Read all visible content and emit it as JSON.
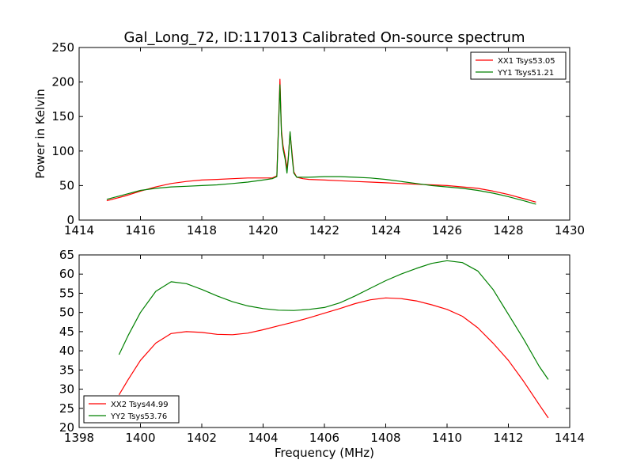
{
  "figure_title": "Gal_Long_72, ID:117013 Calibrated On-source spectrum",
  "chart_data": [
    {
      "type": "line",
      "title": "Gal_Long_72, ID:117013 Calibrated On-source spectrum",
      "xlabel": "",
      "ylabel": "Power in Kelvin",
      "xlim": [
        1414,
        1430
      ],
      "ylim": [
        0,
        250
      ],
      "xticks": [
        1414,
        1416,
        1418,
        1420,
        1422,
        1424,
        1426,
        1428,
        1430
      ],
      "yticks": [
        0,
        50,
        100,
        150,
        200,
        250
      ],
      "grid": false,
      "legend_position": "top-right",
      "series": [
        {
          "name": "XX1 Tsys53.05",
          "color": "#ff0000",
          "x": [
            1414.9,
            1415.5,
            1416.0,
            1416.5,
            1417.0,
            1417.5,
            1418.0,
            1418.5,
            1419.0,
            1419.5,
            1420.0,
            1420.3,
            1420.45,
            1420.55,
            1420.6,
            1420.65,
            1420.72,
            1420.78,
            1420.82,
            1420.88,
            1420.95,
            1421.0,
            1421.1,
            1421.3,
            1421.5,
            1422.0,
            1422.5,
            1423.0,
            1423.5,
            1424.0,
            1424.5,
            1425.0,
            1425.5,
            1426.0,
            1426.5,
            1427.0,
            1427.5,
            1428.0,
            1428.5,
            1428.9
          ],
          "y": [
            28,
            35,
            42,
            48,
            53,
            56,
            58,
            59,
            60,
            61,
            61,
            61,
            64,
            204,
            130,
            108,
            92,
            75,
            90,
            126,
            95,
            70,
            62,
            60,
            59,
            58,
            57,
            56,
            55,
            54,
            53,
            52,
            51,
            50,
            48,
            46,
            42,
            37,
            31,
            26
          ]
        },
        {
          "name": "YY1 Tsys51.21",
          "color": "#008000",
          "x": [
            1414.9,
            1415.5,
            1416.0,
            1416.5,
            1417.0,
            1417.5,
            1418.0,
            1418.5,
            1419.0,
            1419.5,
            1420.0,
            1420.3,
            1420.45,
            1420.55,
            1420.6,
            1420.65,
            1420.72,
            1420.78,
            1420.82,
            1420.88,
            1420.95,
            1421.0,
            1421.1,
            1421.3,
            1421.5,
            1422.0,
            1422.5,
            1423.0,
            1423.5,
            1424.0,
            1424.5,
            1425.0,
            1425.5,
            1426.0,
            1426.5,
            1427.0,
            1427.5,
            1428.0,
            1428.5,
            1428.9
          ],
          "y": [
            30,
            37,
            43,
            46,
            48,
            49,
            50,
            51,
            53,
            55,
            58,
            60,
            63,
            196,
            125,
            103,
            88,
            68,
            88,
            128,
            90,
            68,
            62,
            62,
            62,
            63,
            63,
            62,
            61,
            59,
            56,
            53,
            50,
            48,
            46,
            43,
            39,
            34,
            28,
            23
          ]
        }
      ]
    },
    {
      "type": "line",
      "title": "",
      "xlabel": "Frequency (MHz)",
      "ylabel": "",
      "xlim": [
        1398,
        1414
      ],
      "ylim": [
        20,
        65
      ],
      "xticks": [
        1398,
        1400,
        1402,
        1404,
        1406,
        1408,
        1410,
        1412,
        1414
      ],
      "yticks": [
        20,
        25,
        30,
        35,
        40,
        45,
        50,
        55,
        60,
        65
      ],
      "grid": false,
      "legend_position": "bottom-left",
      "series": [
        {
          "name": "XX2 Tsys44.99",
          "color": "#ff0000",
          "x": [
            1399.3,
            1399.6,
            1400.0,
            1400.5,
            1401.0,
            1401.5,
            1402.0,
            1402.5,
            1403.0,
            1403.5,
            1404.0,
            1404.5,
            1405.0,
            1405.5,
            1406.0,
            1406.5,
            1407.0,
            1407.5,
            1408.0,
            1408.5,
            1409.0,
            1409.5,
            1410.0,
            1410.5,
            1411.0,
            1411.5,
            1412.0,
            1412.5,
            1413.0,
            1413.3
          ],
          "y": [
            28.5,
            32.5,
            37.5,
            42,
            44.5,
            45,
            44.8,
            44.3,
            44.2,
            44.6,
            45.5,
            46.5,
            47.5,
            48.6,
            49.8,
            51,
            52.3,
            53.3,
            53.8,
            53.6,
            53,
            52,
            50.8,
            49,
            46,
            42,
            37.5,
            32,
            26,
            22.5
          ]
        },
        {
          "name": "YY2 Tsys53.76",
          "color": "#008000",
          "x": [
            1399.3,
            1399.6,
            1400.0,
            1400.5,
            1401.0,
            1401.5,
            1402.0,
            1402.5,
            1403.0,
            1403.5,
            1404.0,
            1404.5,
            1405.0,
            1405.5,
            1406.0,
            1406.5,
            1407.0,
            1407.5,
            1408.0,
            1408.5,
            1409.0,
            1409.5,
            1410.0,
            1410.5,
            1411.0,
            1411.5,
            1412.0,
            1412.5,
            1413.0,
            1413.3
          ],
          "y": [
            39,
            44,
            50,
            55.5,
            58,
            57.5,
            56,
            54.3,
            52.8,
            51.7,
            51,
            50.6,
            50.5,
            50.8,
            51.3,
            52.5,
            54.3,
            56.3,
            58.3,
            60,
            61.5,
            62.8,
            63.5,
            63,
            60.8,
            56,
            49.5,
            43,
            36,
            32.5
          ]
        }
      ]
    }
  ]
}
